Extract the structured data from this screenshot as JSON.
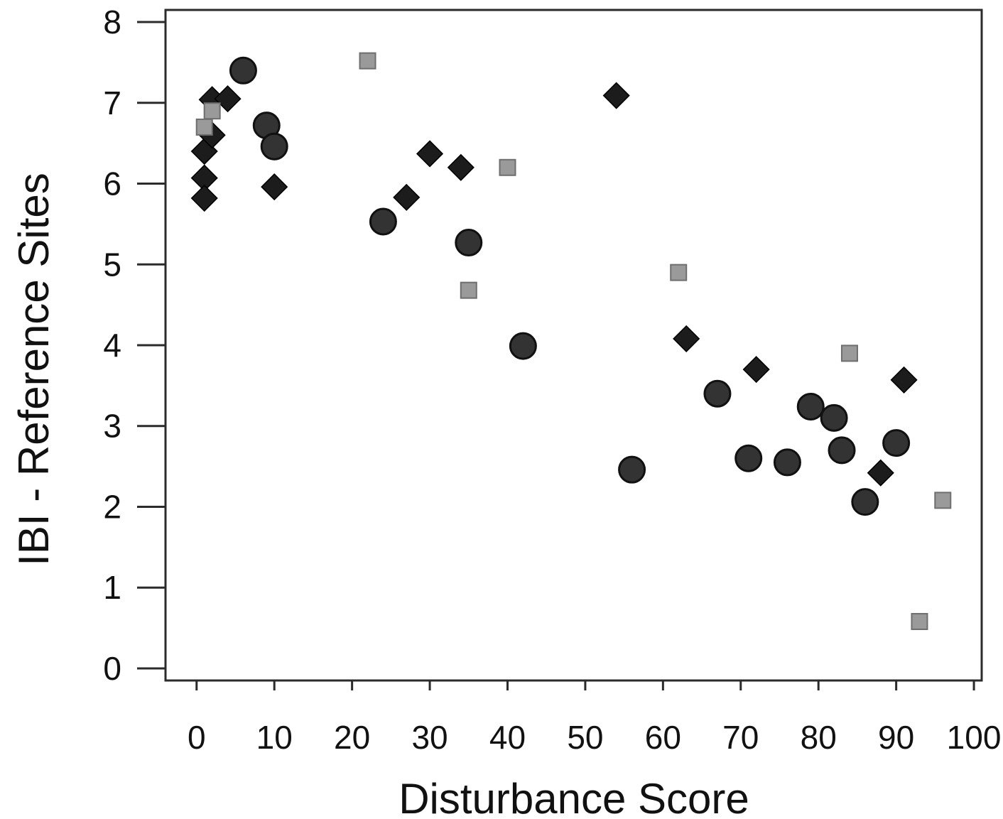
{
  "chart_data": {
    "type": "scatter",
    "title": "",
    "xlabel": "Disturbance Score",
    "ylabel": "IBI - Reference Sites",
    "xlim": [
      -4,
      101
    ],
    "ylim": [
      -0.15,
      8.15
    ],
    "xticks": [
      0,
      10,
      20,
      30,
      40,
      50,
      60,
      70,
      80,
      90,
      100
    ],
    "yticks": [
      0,
      1,
      2,
      3,
      4,
      5,
      6,
      7,
      8
    ],
    "grid": false,
    "legend": "none",
    "series": [
      {
        "marker": "diamond",
        "color": "#1c1c1c",
        "points": [
          {
            "x": 1,
            "y": 6.4
          },
          {
            "x": 1,
            "y": 6.07
          },
          {
            "x": 1,
            "y": 5.82
          },
          {
            "x": 2,
            "y": 7.04
          },
          {
            "x": 2,
            "y": 6.6
          },
          {
            "x": 4,
            "y": 7.05
          },
          {
            "x": 10,
            "y": 5.96
          },
          {
            "x": 27,
            "y": 5.83
          },
          {
            "x": 30,
            "y": 6.37
          },
          {
            "x": 34,
            "y": 6.2
          },
          {
            "x": 54,
            "y": 7.09
          },
          {
            "x": 63,
            "y": 4.08
          },
          {
            "x": 72,
            "y": 3.7
          },
          {
            "x": 88,
            "y": 2.42
          },
          {
            "x": 91,
            "y": 3.57
          }
        ]
      },
      {
        "marker": "circle",
        "color": "#333333",
        "points": [
          {
            "x": 6,
            "y": 7.4
          },
          {
            "x": 9,
            "y": 6.72
          },
          {
            "x": 10,
            "y": 6.46
          },
          {
            "x": 24,
            "y": 5.53
          },
          {
            "x": 35,
            "y": 5.27
          },
          {
            "x": 42,
            "y": 3.99
          },
          {
            "x": 56,
            "y": 2.46
          },
          {
            "x": 67,
            "y": 3.4
          },
          {
            "x": 71,
            "y": 2.6
          },
          {
            "x": 76,
            "y": 2.55
          },
          {
            "x": 79,
            "y": 3.24
          },
          {
            "x": 82,
            "y": 3.1
          },
          {
            "x": 83,
            "y": 2.7
          },
          {
            "x": 86,
            "y": 2.06
          },
          {
            "x": 90,
            "y": 2.79
          }
        ]
      },
      {
        "marker": "square",
        "color": "#9a9a9a",
        "points": [
          {
            "x": 1,
            "y": 6.7
          },
          {
            "x": 2,
            "y": 6.9
          },
          {
            "x": 22,
            "y": 7.52
          },
          {
            "x": 35,
            "y": 4.68
          },
          {
            "x": 40,
            "y": 6.2
          },
          {
            "x": 62,
            "y": 4.9
          },
          {
            "x": 84,
            "y": 3.9
          },
          {
            "x": 93,
            "y": 0.58
          },
          {
            "x": 96,
            "y": 2.08
          }
        ]
      }
    ]
  }
}
